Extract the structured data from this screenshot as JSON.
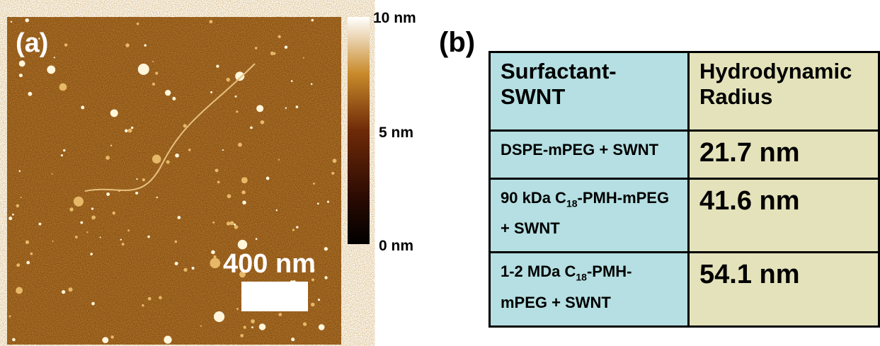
{
  "panel_a": {
    "label": "(a)",
    "colorbar_labels": [
      "10 nm",
      "5 nm",
      "0 nm"
    ],
    "scale_bar": "400 nm"
  },
  "panel_b": {
    "label": "(b)",
    "table": {
      "header": [
        "Surfactant-SWNT",
        "Hydrodynamic Radius"
      ],
      "rows": [
        [
          {
            "text_before": "DSPE-mPEG + SWNT"
          },
          "21.7 nm"
        ],
        [
          {
            "text_before": "90 kDa C",
            "subscript": "18",
            "text_after": "-PMH-mPEG + SWNT"
          },
          "41.6 nm"
        ],
        [
          {
            "text_before": "1-2 MDa C",
            "subscript": "18",
            "text_after": "-PMH-mPEG + SWNT"
          },
          "54.1 nm"
        ]
      ]
    }
  }
}
